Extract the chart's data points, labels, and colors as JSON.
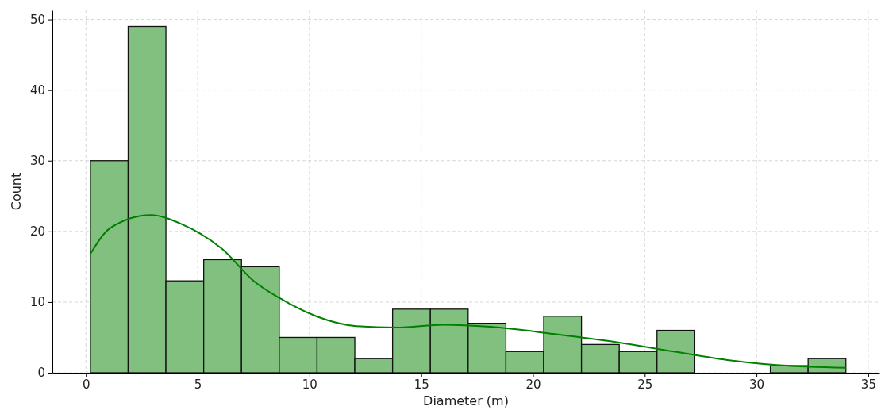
{
  "chart_data": {
    "type": "histogram",
    "xlabel": "Diameter (m)",
    "ylabel": "Count",
    "bins": [
      0.2,
      1.89,
      3.58,
      5.27,
      6.96,
      8.65,
      10.34,
      12.03,
      13.72,
      15.41,
      17.1,
      18.79,
      20.48,
      22.17,
      23.86,
      25.55,
      27.24,
      28.93,
      30.62,
      32.31,
      34.0
    ],
    "series": [
      {
        "color": "#81c07f",
        "values": [
          30,
          49,
          13,
          16,
          15,
          5,
          5,
          2,
          9,
          9,
          7,
          3,
          8,
          4,
          3,
          6,
          0,
          0,
          1,
          2
        ]
      },
      {
        "type": "line",
        "color": "#008000",
        "x": [
          0.2,
          1.1,
          2.9,
          4.3,
          6.1,
          7.5,
          8.7,
          10.3,
          12.1,
          13.9,
          16.0,
          18.1,
          20.9,
          23.8,
          26.3,
          28.7,
          30.9,
          34.0
        ],
        "values": [
          16.8,
          20.5,
          22.3,
          21,
          17.5,
          13,
          10.5,
          8,
          6.6,
          6.4,
          6.8,
          6.5,
          5.5,
          4.3,
          3,
          1.8,
          1.1,
          0.7
        ]
      }
    ],
    "xlim": [
      -1.5,
      35.5
    ],
    "ylim": [
      0,
      51.3
    ],
    "xticks": [
      0,
      5,
      10,
      15,
      20,
      25,
      30,
      35
    ],
    "yticks": [
      0,
      10,
      20,
      30,
      40,
      50
    ],
    "grid": true,
    "marker": "none",
    "line_style": "solid"
  }
}
